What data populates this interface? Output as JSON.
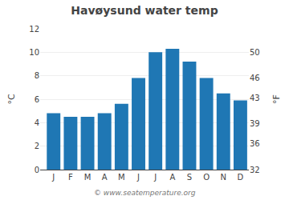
{
  "chart_data": {
    "type": "bar",
    "title": "Havøysund water temp",
    "categories": [
      "J",
      "F",
      "M",
      "A",
      "M",
      "J",
      "J",
      "A",
      "S",
      "O",
      "N",
      "D"
    ],
    "values": [
      4.8,
      4.5,
      4.5,
      4.8,
      5.6,
      7.8,
      10.0,
      10.3,
      9.2,
      7.8,
      6.5,
      5.9
    ],
    "ylabel": "°C",
    "y2label": "°F",
    "ylim": [
      0,
      12
    ],
    "yticks": [
      0,
      2,
      4,
      6,
      8,
      10,
      12
    ],
    "y2lim": [
      32,
      53.6
    ],
    "y2ticks": [
      32,
      36,
      39,
      43,
      46,
      50
    ],
    "grid": true,
    "annotations": [
      "© www.seatemperature.org"
    ]
  }
}
